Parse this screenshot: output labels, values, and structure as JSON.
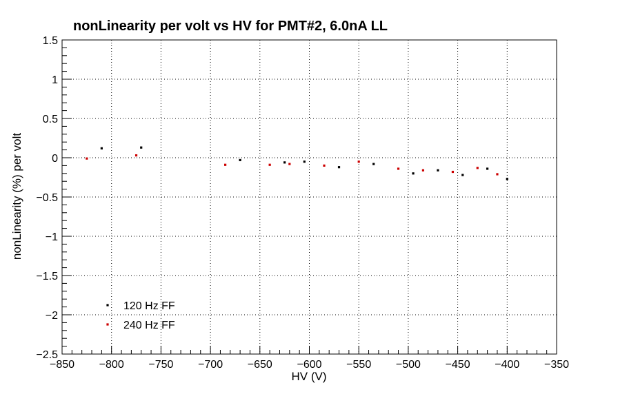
{
  "chart_data": {
    "type": "scatter",
    "title": "nonLinearity per volt vs HV for PMT#2, 6.0nA LL",
    "xlabel": "HV (V)",
    "ylabel": "nonLinearity (%) per volt",
    "xlim": [
      -850,
      -350
    ],
    "ylim": [
      -2.5,
      1.5
    ],
    "grid": true,
    "legend_position": "bottom-left",
    "x_ticks": [
      "−850",
      "−800",
      "−750",
      "−700",
      "−650",
      "−600",
      "−550",
      "−500",
      "−450",
      "−400",
      "−350"
    ],
    "y_ticks": [
      "1.5",
      "1",
      "0.5",
      "0",
      "−0.5",
      "−1",
      "−1.5",
      "−2",
      "−2.5"
    ],
    "series": [
      {
        "name": "120 Hz FF",
        "color": "#000000",
        "x": [
          -810,
          -770,
          -670,
          -625,
          -605,
          -570,
          -535,
          -495,
          -470,
          -445,
          -420,
          -400
        ],
        "y": [
          0.12,
          0.13,
          -0.03,
          -0.06,
          -0.05,
          -0.12,
          -0.08,
          -0.2,
          -0.16,
          -0.22,
          -0.14,
          -0.27
        ]
      },
      {
        "name": "240 Hz FF",
        "color": "#cc0000",
        "x": [
          -825,
          -775,
          -685,
          -640,
          -620,
          -585,
          -550,
          -510,
          -485,
          -455,
          -430,
          -410
        ],
        "y": [
          -0.01,
          0.03,
          -0.09,
          -0.09,
          -0.08,
          -0.1,
          -0.05,
          -0.14,
          -0.16,
          -0.18,
          -0.13,
          -0.21
        ]
      }
    ]
  }
}
